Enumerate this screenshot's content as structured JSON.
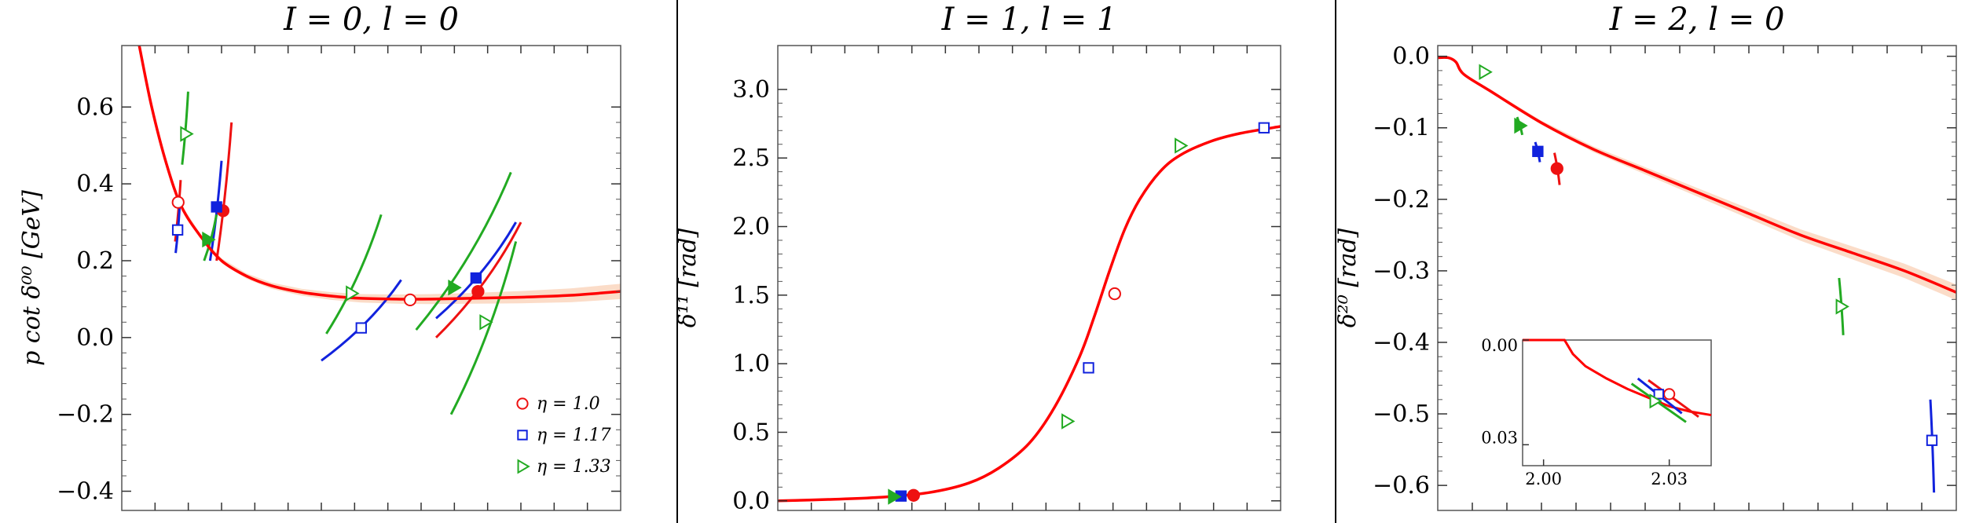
{
  "colors": {
    "fit": "#ff0000",
    "band": "#f9cdb0",
    "eta_1_0": "#ee1111",
    "eta_1_17": "#1122dd",
    "eta_1_33": "#22aa22",
    "axis": "#000000",
    "divider": "#000000"
  },
  "legend": [
    {
      "marker": "circle-open",
      "color": "#ee1111",
      "label": "η = 1.0"
    },
    {
      "marker": "square-open",
      "color": "#1122dd",
      "label": "η = 1.17"
    },
    {
      "marker": "triangle-open",
      "color": "#22aa22",
      "label": "η = 1.33"
    }
  ],
  "chart_data": [
    {
      "type": "scatter",
      "title": "I = 0,  l = 0",
      "ylabel": "p cot δ⁰⁰ [GeV]",
      "ylim": [
        -0.45,
        0.76
      ],
      "yticks": [
        -0.4,
        -0.2,
        0.0,
        0.2,
        0.4,
        0.6
      ],
      "yticklabels": [
        "−0.4",
        "−0.2",
        "0.0",
        "0.2",
        "0.4",
        "0.6"
      ],
      "xlim": [
        0,
        1
      ],
      "x_tick_count": 15,
      "legend_position": "bottom-right",
      "fit_curve": {
        "x": [
          0.035,
          0.06,
          0.09,
          0.12,
          0.16,
          0.2,
          0.25,
          0.3,
          0.36,
          0.42,
          0.48,
          0.55,
          0.62,
          0.7,
          0.8,
          0.9,
          1.0
        ],
        "y": [
          0.76,
          0.6,
          0.45,
          0.34,
          0.26,
          0.2,
          0.16,
          0.135,
          0.118,
          0.108,
          0.102,
          0.1,
          0.1,
          0.102,
          0.105,
          0.11,
          0.12
        ],
        "band_halfwidth": [
          0.0,
          0.0,
          0.005,
          0.005,
          0.005,
          0.006,
          0.007,
          0.008,
          0.009,
          0.01,
          0.011,
          0.012,
          0.013,
          0.014,
          0.016,
          0.018,
          0.02
        ]
      },
      "series": [
        {
          "name": "η = 1.0",
          "color": "#ee1111",
          "points": [
            {
              "x": 0.113,
              "y": 0.352,
              "filled": false,
              "band": [
                [
                  0.107,
                  0.25
                ],
                [
                  0.118,
                  0.41
                ]
              ]
            },
            {
              "x": 0.203,
              "y": 0.33,
              "filled": true,
              "band": [
                [
                  0.19,
                  0.2
                ],
                [
                  0.22,
                  0.56
                ]
              ]
            },
            {
              "x": 0.578,
              "y": 0.098,
              "filled": false,
              "band": null
            },
            {
              "x": 0.714,
              "y": 0.12,
              "filled": true,
              "band": [
                [
                  0.63,
                  0.0
                ],
                [
                  0.8,
                  0.3
                ]
              ]
            }
          ]
        },
        {
          "name": "η = 1.17",
          "color": "#1122dd",
          "points": [
            {
              "x": 0.112,
              "y": 0.28,
              "filled": false,
              "band": [
                [
                  0.108,
                  0.22
                ],
                [
                  0.116,
                  0.34
                ]
              ]
            },
            {
              "x": 0.19,
              "y": 0.34,
              "filled": true,
              "band": [
                [
                  0.177,
                  0.2
                ],
                [
                  0.2,
                  0.46
                ]
              ]
            },
            {
              "x": 0.48,
              "y": 0.025,
              "filled": false,
              "band": [
                [
                  0.4,
                  -0.06
                ],
                [
                  0.56,
                  0.15
                ]
              ]
            },
            {
              "x": 0.71,
              "y": 0.155,
              "filled": true,
              "band": [
                [
                  0.63,
                  0.05
                ],
                [
                  0.79,
                  0.3
                ]
              ]
            }
          ]
        },
        {
          "name": "η = 1.33",
          "color": "#22aa22",
          "points": [
            {
              "x": 0.128,
              "y": 0.53,
              "filled": false,
              "band": [
                [
                  0.121,
                  0.45
                ],
                [
                  0.133,
                  0.64
                ]
              ]
            },
            {
              "x": 0.172,
              "y": 0.255,
              "filled": true,
              "band": [
                [
                  0.165,
                  0.2
                ],
                [
                  0.19,
                  0.32
                ]
              ]
            },
            {
              "x": 0.46,
              "y": 0.115,
              "filled": false,
              "band": [
                [
                  0.41,
                  0.01
                ],
                [
                  0.52,
                  0.32
                ]
              ]
            },
            {
              "x": 0.665,
              "y": 0.13,
              "filled": true,
              "band": [
                [
                  0.59,
                  0.02
                ],
                [
                  0.78,
                  0.43
                ]
              ]
            },
            {
              "x": 0.728,
              "y": 0.04,
              "filled": false,
              "band": [
                [
                  0.66,
                  -0.2
                ],
                [
                  0.79,
                  0.25
                ]
              ]
            }
          ]
        }
      ]
    },
    {
      "type": "scatter",
      "title": "I = 1,  l = 1",
      "ylabel": "δ¹¹ [rad]",
      "ylim": [
        -0.07,
        3.32
      ],
      "yticks": [
        0.0,
        0.5,
        1.0,
        1.5,
        2.0,
        2.5,
        3.0
      ],
      "yticklabels": [
        "0.0",
        "0.5",
        "1.0",
        "1.5",
        "2.0",
        "2.5",
        "3.0"
      ],
      "xlim": [
        0,
        1
      ],
      "x_tick_count": 15,
      "fit_curve": {
        "x": [
          0.0,
          0.1,
          0.2,
          0.3,
          0.38,
          0.44,
          0.5,
          0.55,
          0.6,
          0.63,
          0.66,
          0.69,
          0.72,
          0.76,
          0.8,
          0.86,
          0.92,
          1.0
        ],
        "y": [
          0.0,
          0.01,
          0.025,
          0.06,
          0.13,
          0.24,
          0.42,
          0.68,
          1.05,
          1.35,
          1.68,
          1.98,
          2.2,
          2.4,
          2.52,
          2.62,
          2.68,
          2.73
        ],
        "band_halfwidth": []
      },
      "series": [
        {
          "name": "η = 1.0",
          "color": "#ee1111",
          "points": [
            {
              "x": 0.27,
              "y": 0.04,
              "filled": true,
              "band": null
            },
            {
              "x": 0.67,
              "y": 1.51,
              "filled": false,
              "band": null
            }
          ]
        },
        {
          "name": "η = 1.17",
          "color": "#1122dd",
          "points": [
            {
              "x": 0.245,
              "y": 0.035,
              "filled": true,
              "band": null
            },
            {
              "x": 0.618,
              "y": 0.97,
              "filled": false,
              "band": null
            },
            {
              "x": 0.967,
              "y": 2.72,
              "filled": false,
              "band": null
            }
          ]
        },
        {
          "name": "η = 1.33",
          "color": "#22aa22",
          "points": [
            {
              "x": 0.23,
              "y": 0.03,
              "filled": true,
              "band": null
            },
            {
              "x": 0.575,
              "y": 0.58,
              "filled": false,
              "band": null
            },
            {
              "x": 0.8,
              "y": 2.59,
              "filled": false,
              "band": null
            }
          ]
        }
      ]
    },
    {
      "type": "scatter",
      "title": "I = 2,  l = 0",
      "ylabel": "δ²⁰ [rad]",
      "ylim": [
        -0.635,
        0.015
      ],
      "yticks": [
        0.0,
        -0.1,
        -0.2,
        -0.3,
        -0.4,
        -0.5,
        -0.6
      ],
      "yticklabels": [
        "0.0",
        "−0.1",
        "−0.2",
        "−0.3",
        "−0.4",
        "−0.5",
        "−0.6"
      ],
      "xlim": [
        0,
        1
      ],
      "x_tick_count": 15,
      "fit_curve": {
        "x": [
          0.0,
          0.02,
          0.035,
          0.05,
          0.1,
          0.2,
          0.3,
          0.4,
          0.5,
          0.6,
          0.7,
          0.8,
          0.9,
          1.0
        ],
        "y": [
          -0.002,
          -0.002,
          -0.008,
          -0.025,
          -0.048,
          -0.093,
          -0.13,
          -0.16,
          -0.19,
          -0.22,
          -0.25,
          -0.275,
          -0.3,
          -0.33
        ],
        "band_halfwidth": [
          0.0,
          0.0,
          0.0,
          0.0,
          0.002,
          0.003,
          0.004,
          0.005,
          0.006,
          0.007,
          0.008,
          0.009,
          0.01,
          0.011
        ]
      },
      "series": [
        {
          "name": "η = 1.0",
          "color": "#ee1111",
          "points": [
            {
              "x": 0.23,
              "y": -0.157,
              "filled": true,
              "band": [
                [
                  0.225,
                  -0.135
                ],
                [
                  0.235,
                  -0.18
                ]
              ]
            }
          ]
        },
        {
          "name": "η = 1.17",
          "color": "#1122dd",
          "points": [
            {
              "x": 0.193,
              "y": -0.133,
              "filled": true,
              "band": [
                [
                  0.188,
                  -0.12
                ],
                [
                  0.197,
                  -0.148
                ]
              ]
            },
            {
              "x": 0.953,
              "y": -0.537,
              "filled": false,
              "band": [
                [
                  0.95,
                  -0.48
                ],
                [
                  0.957,
                  -0.61
                ]
              ]
            }
          ]
        },
        {
          "name": "η = 1.33",
          "color": "#22aa22",
          "points": [
            {
              "x": 0.09,
              "y": -0.022,
              "filled": false,
              "band": null
            },
            {
              "x": 0.158,
              "y": -0.097,
              "filled": true,
              "band": [
                [
                  0.153,
                  -0.085
                ],
                [
                  0.163,
                  -0.11
                ]
              ]
            },
            {
              "x": 0.778,
              "y": -0.35,
              "filled": false,
              "band": [
                [
                  0.774,
                  -0.31
                ],
                [
                  0.782,
                  -0.39
                ]
              ]
            }
          ]
        }
      ],
      "inset": {
        "xlim": [
          1.995,
          2.04
        ],
        "ylim": [
          0.036,
          0.0
        ],
        "xticks": [
          2.0,
          2.03
        ],
        "xticklabels": [
          "2.00",
          "2.03"
        ],
        "yticks": [
          0.0,
          0.03
        ],
        "yticklabels": [
          "0.00",
          "0.03"
        ],
        "fit_curve": {
          "x": [
            1.995,
            2.005,
            2.0055,
            2.007,
            2.01,
            2.015,
            2.02,
            2.025,
            2.03,
            2.035,
            2.04
          ],
          "y": [
            0.0,
            0.0,
            0.001,
            0.004,
            0.0075,
            0.011,
            0.014,
            0.0165,
            0.019,
            0.0205,
            0.0215
          ]
        },
        "segments": [
          {
            "color": "#ee1111",
            "from": [
              2.025,
              0.0115
            ],
            "to": [
              2.037,
              0.022
            ]
          },
          {
            "color": "#1122dd",
            "from": [
              2.0225,
              0.011
            ],
            "to": [
              2.033,
              0.021
            ]
          },
          {
            "color": "#22aa22",
            "from": [
              2.021,
              0.0125
            ],
            "to": [
              2.034,
              0.0235
            ]
          }
        ],
        "points": [
          {
            "x": 2.03,
            "y": 0.0155,
            "color": "#ee1111",
            "marker": "circle-open"
          },
          {
            "x": 2.0275,
            "y": 0.0155,
            "color": "#1122dd",
            "marker": "square-open"
          },
          {
            "x": 2.0265,
            "y": 0.0175,
            "color": "#22aa22",
            "marker": "triangle-open"
          }
        ]
      }
    }
  ]
}
